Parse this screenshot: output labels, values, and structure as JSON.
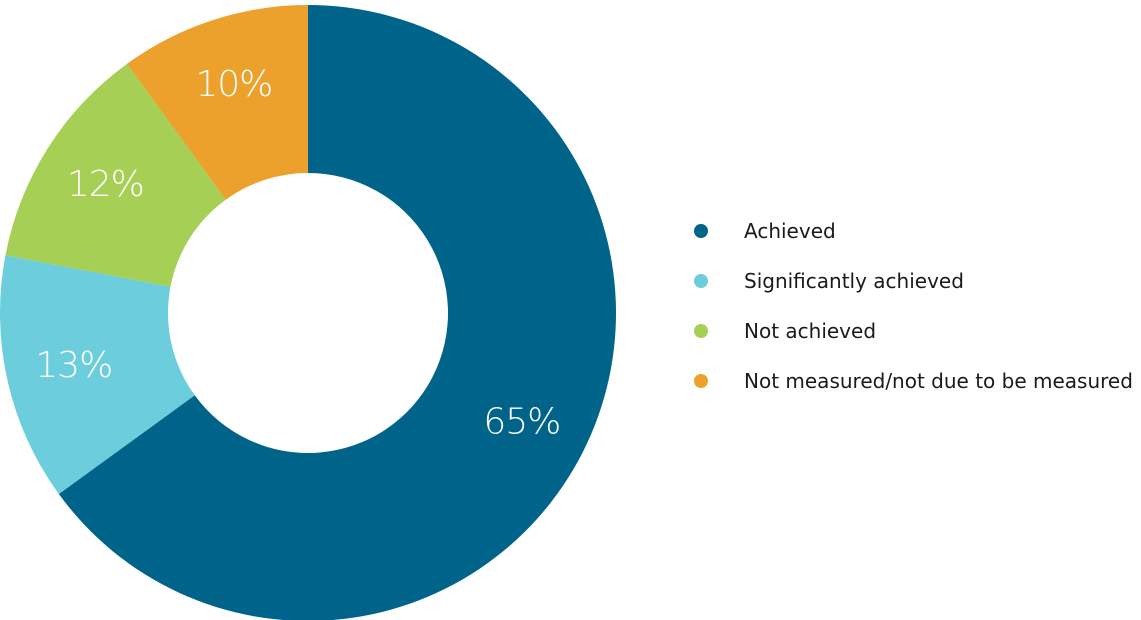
{
  "chart_data": {
    "type": "pie",
    "subtype": "donut",
    "start_angle_deg": 0,
    "direction": "clockwise",
    "legend_position": "right",
    "slices": [
      {
        "name": "Achieved",
        "value": 65,
        "label": "65%",
        "color": "#00648a"
      },
      {
        "name": "Significantly achieved",
        "value": 13,
        "label": "13%",
        "color": "#6ccddc"
      },
      {
        "name": "Not achieved",
        "value": 12,
        "label": "12%",
        "color": "#a6cf55"
      },
      {
        "name": "Not measured/not due to be measured",
        "value": 10,
        "label": "10%",
        "color": "#eba12b"
      }
    ]
  }
}
